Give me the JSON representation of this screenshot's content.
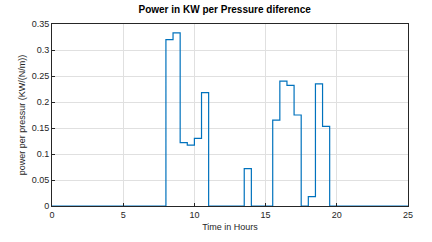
{
  "chart_data": {
    "type": "line",
    "line_style": "steps",
    "title": "Power in KW per Pressure diference",
    "x_label": "Time in Hours",
    "y_label": "power per pressur (KW/(N/m))",
    "x": [
      0,
      8,
      8.5,
      9,
      9.5,
      10,
      10.5,
      11,
      13.5,
      14,
      15.5,
      16,
      16.5,
      17,
      17.5,
      18,
      18.5,
      19,
      19.5,
      25
    ],
    "values": [
      0,
      0.32,
      0.333,
      0.122,
      0.117,
      0.13,
      0.218,
      0,
      0.072,
      0,
      0.165,
      0.24,
      0.232,
      0.175,
      0,
      0.018,
      0.235,
      0.153,
      0,
      0
    ],
    "color": "#0072bd",
    "xlim": [
      0,
      25
    ],
    "xticks": [
      0,
      5,
      10,
      15,
      20,
      25
    ],
    "ylim": [
      0,
      0.35
    ],
    "yticks": [
      0,
      0.05,
      0.1,
      0.15,
      0.2,
      0.25,
      0.3,
      0.35
    ],
    "grid": true
  }
}
